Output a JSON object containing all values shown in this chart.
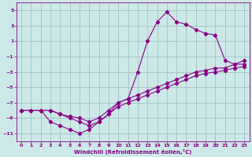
{
  "xlabel": "Windchill (Refroidissement éolien,°C)",
  "bg_color": "#cce8e8",
  "line_color": "#880088",
  "markersize": 2.2,
  "linewidth": 0.8,
  "xlim": [
    -0.5,
    23.5
  ],
  "ylim": [
    -12,
    6
  ],
  "xticks": [
    0,
    1,
    2,
    3,
    4,
    5,
    6,
    7,
    8,
    9,
    10,
    11,
    12,
    13,
    14,
    15,
    16,
    17,
    18,
    19,
    20,
    21,
    22,
    23
  ],
  "yticks": [
    -11,
    -9,
    -7,
    -5,
    -3,
    -1,
    1,
    3,
    5
  ],
  "grid_color": "#99bbbb",
  "curve1_x": [
    0,
    1,
    2,
    3,
    4,
    5,
    6,
    7,
    8,
    9,
    10,
    11,
    12,
    13,
    14,
    15,
    16,
    17,
    18,
    19,
    20,
    21,
    22,
    23
  ],
  "curve1_y": [
    -8,
    -8,
    -8,
    -9.5,
    -10,
    -10.5,
    -11,
    -10.5,
    -9.5,
    -8.5,
    -7.5,
    -7,
    -6.5,
    -6,
    -5.5,
    -5,
    -4.5,
    -4,
    -3.5,
    -3.2,
    -3,
    -2.8,
    -2.5,
    -2.3
  ],
  "curve2_x": [
    0,
    1,
    2,
    3,
    4,
    5,
    6,
    7,
    8,
    9,
    10,
    11,
    12,
    13,
    14,
    15,
    16,
    17,
    18,
    19,
    20,
    21,
    22,
    23
  ],
  "curve2_y": [
    -8,
    -8,
    -8,
    -8,
    -8.5,
    -8.8,
    -9,
    -9.5,
    -9,
    -8,
    -7,
    -6.5,
    -3,
    1,
    3.5,
    4.8,
    3.5,
    3.2,
    2.5,
    2,
    1.8,
    -1.5,
    -2,
    -1.5
  ],
  "curve3_x": [
    0,
    1,
    2,
    3,
    4,
    5,
    6,
    7,
    8,
    9,
    10,
    11,
    12,
    13,
    14,
    15,
    16,
    17,
    18,
    19,
    20,
    21,
    22,
    23
  ],
  "curve3_y": [
    -8,
    -8,
    -8,
    -8,
    -8.5,
    -9,
    -9.5,
    -10,
    -9.5,
    -8.5,
    -7,
    -6.5,
    -6,
    -5.5,
    -5,
    -4.5,
    -4,
    -3.5,
    -3,
    -2.8,
    -2.5,
    -2.5,
    -2,
    -2
  ]
}
